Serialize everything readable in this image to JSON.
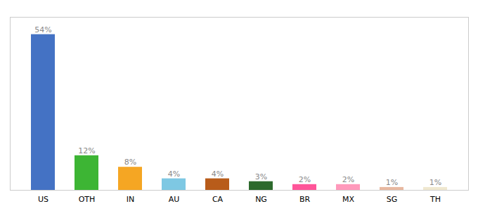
{
  "chart_data": {
    "type": "bar",
    "categories": [
      "US",
      "OTH",
      "IN",
      "AU",
      "CA",
      "NG",
      "BR",
      "MX",
      "SG",
      "TH"
    ],
    "values": [
      54,
      12,
      8,
      4,
      4,
      3,
      2,
      2,
      1,
      1
    ],
    "value_labels": [
      "54%",
      "12%",
      "8%",
      "4%",
      "4%",
      "3%",
      "2%",
      "2%",
      "1%",
      "1%"
    ],
    "colors": [
      "#4472c4",
      "#3db534",
      "#f5a623",
      "#7ec8e3",
      "#b85c1a",
      "#2d6a2d",
      "#ff5599",
      "#ff99bb",
      "#e8b8a0",
      "#f0e8d0"
    ],
    "ylim": [
      0,
      60
    ],
    "data_labels": true,
    "tick_labels": "x",
    "grid": false
  }
}
